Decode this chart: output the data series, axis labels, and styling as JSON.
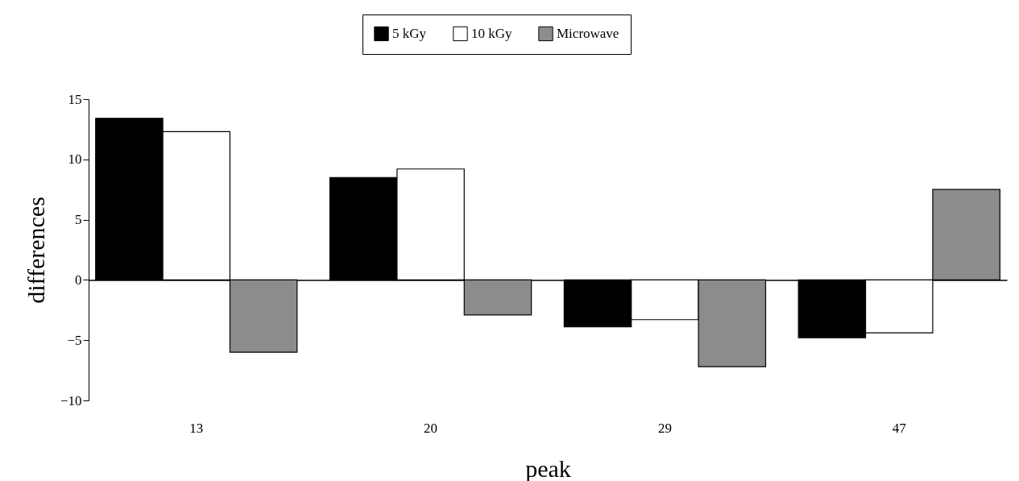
{
  "chart_data": {
    "type": "bar",
    "xlabel": "peak",
    "ylabel": "differences",
    "categories": [
      "13",
      "20",
      "29",
      "47"
    ],
    "series": [
      {
        "name": "5 kGy",
        "color": "#000000",
        "values": [
          13.4,
          8.5,
          -3.9,
          -4.8
        ]
      },
      {
        "name": "10 kGy",
        "color": "#ffffff",
        "values": [
          12.3,
          9.2,
          -3.3,
          -4.4
        ]
      },
      {
        "name": "Microwave",
        "color": "#8c8c8c",
        "values": [
          -6.0,
          -2.9,
          -7.2,
          7.5
        ]
      }
    ],
    "ylim": [
      -10,
      15
    ],
    "yticks": [
      -10,
      -5,
      0,
      5,
      10,
      15
    ],
    "legend": "top"
  }
}
